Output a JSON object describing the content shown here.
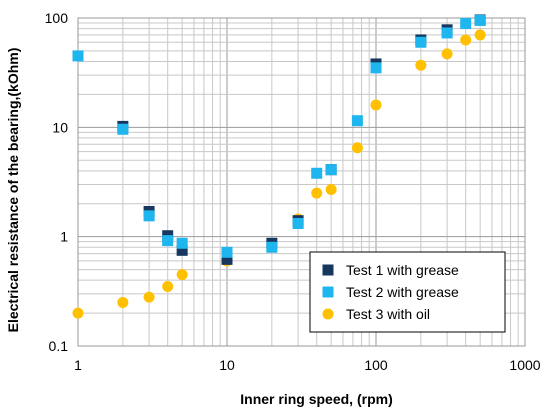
{
  "chart_data": {
    "type": "scatter",
    "title": "",
    "xlabel": "Inner  ring speed, (rpm)",
    "ylabel": "Electrical resistance of the bearing,(kOhm)",
    "x_scale": "log",
    "y_scale": "log",
    "xlim": [
      1,
      1000
    ],
    "ylim": [
      0.1,
      100
    ],
    "x_ticks": [
      "1",
      "10",
      "100",
      "1000"
    ],
    "y_ticks": [
      "0.1",
      "1",
      "10",
      "100"
    ],
    "grid": true,
    "legend_position": "bottom-right",
    "series": [
      {
        "name": "Test 1 with grease",
        "marker": "square",
        "color": "#17375E",
        "points": [
          [
            2,
            10.2
          ],
          [
            3,
            1.7
          ],
          [
            4,
            1.02
          ],
          [
            5,
            0.75
          ],
          [
            10,
            0.62
          ],
          [
            20,
            0.87
          ],
          [
            30,
            1.4
          ],
          [
            50,
            4.1
          ],
          [
            100,
            38
          ],
          [
            200,
            63
          ],
          [
            300,
            78
          ],
          [
            500,
            96
          ]
        ]
      },
      {
        "name": "Test 2 with grease",
        "marker": "square",
        "color": "#1FB5EE",
        "points": [
          [
            1,
            45
          ],
          [
            2,
            9.6
          ],
          [
            3,
            1.55
          ],
          [
            4,
            0.92
          ],
          [
            5,
            0.87
          ],
          [
            10,
            0.72
          ],
          [
            20,
            0.8
          ],
          [
            30,
            1.32
          ],
          [
            40,
            3.8
          ],
          [
            50,
            4.1
          ],
          [
            75,
            11.5
          ],
          [
            100,
            35
          ],
          [
            200,
            60
          ],
          [
            300,
            73
          ],
          [
            400,
            89
          ],
          [
            500,
            95
          ]
        ]
      },
      {
        "name": "Test 3 with oil",
        "marker": "circle",
        "color": "#FFC000",
        "points": [
          [
            1,
            0.2
          ],
          [
            2,
            0.25
          ],
          [
            3,
            0.28
          ],
          [
            4,
            0.35
          ],
          [
            5,
            0.45
          ],
          [
            10,
            0.6
          ],
          [
            20,
            0.8
          ],
          [
            30,
            1.45
          ],
          [
            40,
            2.5
          ],
          [
            50,
            2.7
          ],
          [
            75,
            6.5
          ],
          [
            100,
            16
          ],
          [
            200,
            37
          ],
          [
            300,
            47
          ],
          [
            400,
            63
          ],
          [
            500,
            70
          ]
        ]
      }
    ]
  }
}
